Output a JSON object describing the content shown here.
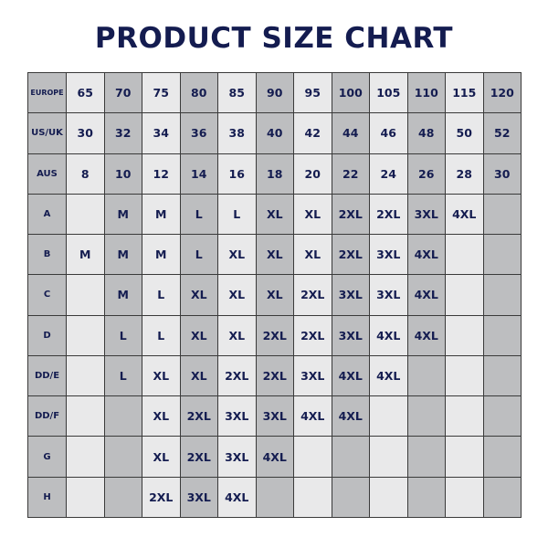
{
  "chart_data": {
    "type": "table",
    "title": "PRODUCT SIZE CHART",
    "colors": {
      "text": "#141c50",
      "shade_dark": "#bdbec0",
      "shade_light": "#e9e9ea"
    },
    "rows": [
      {
        "label": "EUROPE",
        "cells": [
          "65",
          "70",
          "75",
          "80",
          "85",
          "90",
          "95",
          "100",
          "105",
          "110",
          "115",
          "120"
        ]
      },
      {
        "label": "US/UK",
        "cells": [
          "30",
          "32",
          "34",
          "36",
          "38",
          "40",
          "42",
          "44",
          "46",
          "48",
          "50",
          "52"
        ]
      },
      {
        "label": "AUS",
        "cells": [
          "8",
          "10",
          "12",
          "14",
          "16",
          "18",
          "20",
          "22",
          "24",
          "26",
          "28",
          "30"
        ]
      },
      {
        "label": "A",
        "cells": [
          "",
          "M",
          "M",
          "L",
          "L",
          "XL",
          "XL",
          "2XL",
          "2XL",
          "3XL",
          "4XL",
          ""
        ]
      },
      {
        "label": "B",
        "cells": [
          "M",
          "M",
          "M",
          "L",
          "XL",
          "XL",
          "XL",
          "2XL",
          "3XL",
          "4XL",
          "",
          ""
        ]
      },
      {
        "label": "C",
        "cells": [
          "",
          "M",
          "L",
          "XL",
          "XL",
          "XL",
          "2XL",
          "3XL",
          "3XL",
          "4XL",
          "",
          ""
        ]
      },
      {
        "label": "D",
        "cells": [
          "",
          "L",
          "L",
          "XL",
          "XL",
          "2XL",
          "2XL",
          "3XL",
          "4XL",
          "4XL",
          "",
          ""
        ]
      },
      {
        "label": "DD/E",
        "cells": [
          "",
          "L",
          "XL",
          "XL",
          "2XL",
          "2XL",
          "3XL",
          "4XL",
          "4XL",
          "",
          "",
          ""
        ]
      },
      {
        "label": "DD/F",
        "cells": [
          "",
          "",
          "XL",
          "2XL",
          "3XL",
          "3XL",
          "4XL",
          "4XL",
          "",
          "",
          "",
          ""
        ]
      },
      {
        "label": "G",
        "cells": [
          "",
          "",
          "XL",
          "2XL",
          "3XL",
          "4XL",
          "",
          "",
          "",
          "",
          "",
          ""
        ]
      },
      {
        "label": "H",
        "cells": [
          "",
          "",
          "2XL",
          "3XL",
          "4XL",
          "",
          "",
          "",
          "",
          "",
          "",
          ""
        ]
      }
    ]
  }
}
